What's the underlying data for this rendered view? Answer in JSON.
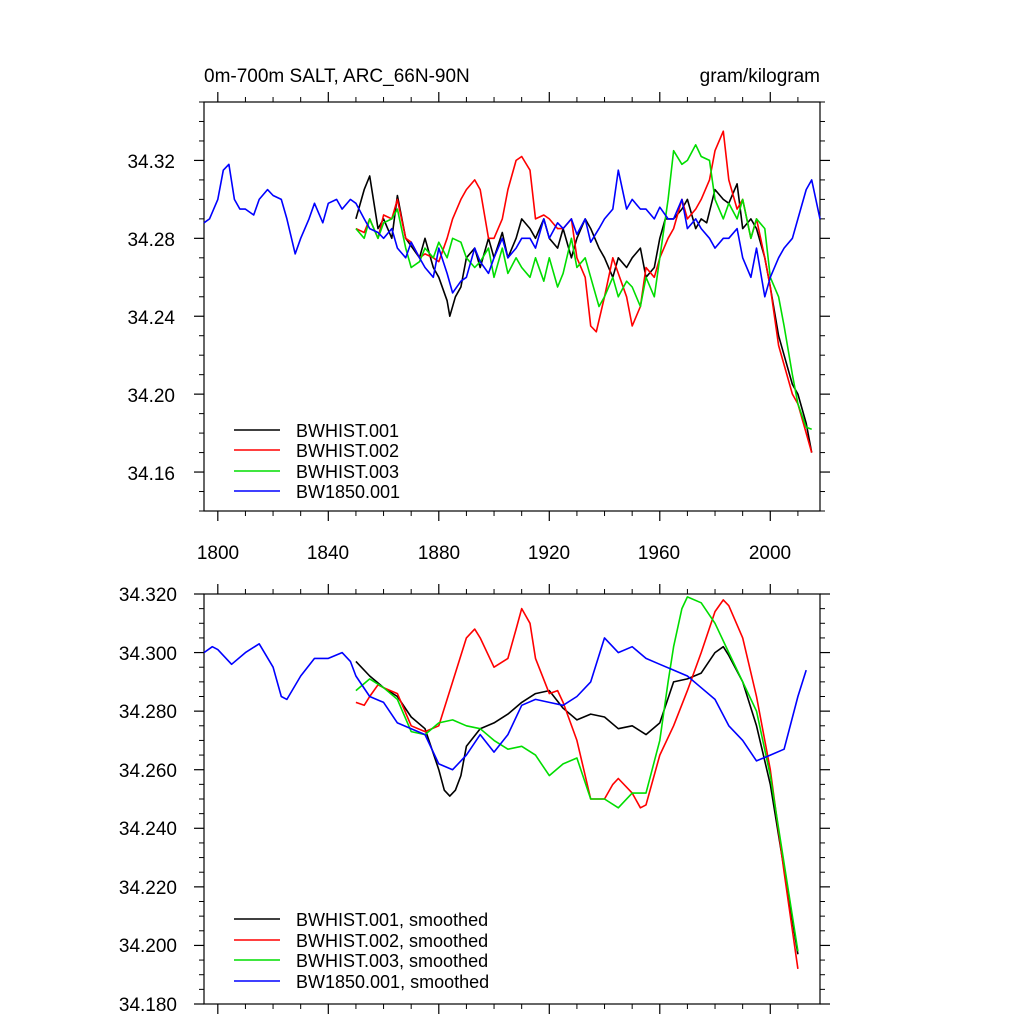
{
  "chart_data": [
    {
      "type": "line",
      "title_left": "0m-700m SALT, ARC_66N-90N",
      "title_right": "gram/kilogram",
      "xlim": [
        1795,
        2018
      ],
      "ylim": [
        34.14,
        34.35
      ],
      "x_ticks": [
        1800,
        1840,
        1880,
        1920,
        1960,
        2000
      ],
      "x_tick_labels": [
        "1800",
        "1840",
        "1880",
        "1920",
        "1960",
        "2000"
      ],
      "y_ticks": [
        34.16,
        34.2,
        34.24,
        34.28,
        34.32
      ],
      "y_tick_labels": [
        "34.16",
        "34.20",
        "34.24",
        "34.28",
        "34.32"
      ],
      "legend": [
        "BWHIST.001",
        "BWHIST.002",
        "BWHIST.003",
        "BW1850.001"
      ],
      "series": [
        {
          "name": "BWHIST.001",
          "color": "#000000",
          "x": [
            1850,
            1853,
            1855,
            1858,
            1860,
            1863,
            1865,
            1868,
            1870,
            1873,
            1875,
            1878,
            1880,
            1883,
            1884,
            1886,
            1888,
            1890,
            1893,
            1895,
            1898,
            1900,
            1903,
            1905,
            1908,
            1910,
            1913,
            1915,
            1918,
            1920,
            1923,
            1925,
            1928,
            1930,
            1933,
            1935,
            1938,
            1940,
            1943,
            1945,
            1948,
            1950,
            1953,
            1955,
            1958,
            1960,
            1962,
            1965,
            1968,
            1970,
            1973,
            1975,
            1977,
            1980,
            1983,
            1985,
            1988,
            1990,
            1993,
            1995,
            1998,
            2000,
            2003,
            2005,
            2008,
            2010,
            2013,
            2015
          ],
          "y": [
            34.29,
            34.305,
            34.312,
            34.285,
            34.29,
            34.28,
            34.302,
            34.28,
            34.276,
            34.27,
            34.28,
            34.265,
            34.26,
            34.248,
            34.24,
            34.25,
            34.255,
            34.27,
            34.275,
            34.265,
            34.28,
            34.27,
            34.283,
            34.27,
            34.28,
            34.29,
            34.285,
            34.28,
            34.29,
            34.28,
            34.275,
            34.285,
            34.27,
            34.28,
            34.29,
            34.285,
            34.275,
            34.27,
            34.26,
            34.27,
            34.265,
            34.27,
            34.275,
            34.26,
            34.265,
            34.28,
            34.29,
            34.29,
            34.295,
            34.3,
            34.285,
            34.29,
            34.288,
            34.305,
            34.3,
            34.298,
            34.308,
            34.285,
            34.29,
            34.285,
            34.27,
            34.255,
            34.23,
            34.22,
            34.205,
            34.2,
            34.185,
            34.17
          ]
        },
        {
          "name": "BWHIST.002",
          "color": "#ff0000",
          "x": [
            1850,
            1853,
            1855,
            1858,
            1860,
            1863,
            1865,
            1868,
            1870,
            1873,
            1875,
            1878,
            1880,
            1883,
            1885,
            1888,
            1890,
            1893,
            1895,
            1898,
            1900,
            1903,
            1905,
            1908,
            1910,
            1913,
            1915,
            1918,
            1920,
            1923,
            1925,
            1928,
            1930,
            1933,
            1935,
            1937,
            1940,
            1943,
            1945,
            1948,
            1950,
            1953,
            1955,
            1958,
            1960,
            1963,
            1965,
            1968,
            1970,
            1973,
            1975,
            1978,
            1980,
            1983,
            1985,
            1988,
            1990,
            1993,
            1995,
            1998,
            2000,
            2003,
            2005,
            2008,
            2010,
            2013,
            2015
          ],
          "y": [
            34.285,
            34.283,
            34.29,
            34.28,
            34.292,
            34.29,
            34.3,
            34.28,
            34.278,
            34.27,
            34.272,
            34.27,
            34.268,
            34.28,
            34.29,
            34.3,
            34.305,
            34.31,
            34.305,
            34.28,
            34.28,
            34.29,
            34.305,
            34.32,
            34.322,
            34.315,
            34.29,
            34.292,
            34.29,
            34.285,
            34.285,
            34.29,
            34.27,
            34.26,
            34.235,
            34.232,
            34.25,
            34.27,
            34.262,
            34.25,
            34.235,
            34.245,
            34.265,
            34.26,
            34.27,
            34.28,
            34.285,
            34.3,
            34.29,
            34.295,
            34.3,
            34.31,
            34.325,
            34.335,
            34.31,
            34.295,
            34.3,
            34.28,
            34.29,
            34.27,
            34.255,
            34.225,
            34.215,
            34.2,
            34.195,
            34.18,
            34.17
          ]
        },
        {
          "name": "BWHIST.003",
          "color": "#00dd00",
          "x": [
            1850,
            1853,
            1855,
            1858,
            1860,
            1863,
            1865,
            1868,
            1870,
            1873,
            1875,
            1878,
            1880,
            1883,
            1885,
            1888,
            1890,
            1893,
            1895,
            1898,
            1900,
            1903,
            1905,
            1908,
            1910,
            1913,
            1915,
            1918,
            1920,
            1923,
            1925,
            1928,
            1930,
            1933,
            1935,
            1938,
            1940,
            1943,
            1945,
            1948,
            1950,
            1953,
            1955,
            1958,
            1960,
            1963,
            1965,
            1968,
            1970,
            1973,
            1975,
            1978,
            1980,
            1983,
            1985,
            1988,
            1990,
            1993,
            1995,
            1998,
            2000,
            2003,
            2005,
            2008,
            2010,
            2013,
            2015
          ],
          "y": [
            34.285,
            34.28,
            34.29,
            34.28,
            34.288,
            34.29,
            34.295,
            34.275,
            34.265,
            34.268,
            34.275,
            34.27,
            34.278,
            34.27,
            34.28,
            34.278,
            34.27,
            34.265,
            34.268,
            34.275,
            34.26,
            34.275,
            34.262,
            34.27,
            34.265,
            34.26,
            34.27,
            34.258,
            34.27,
            34.255,
            34.262,
            34.28,
            34.265,
            34.27,
            34.26,
            34.245,
            34.25,
            34.26,
            34.25,
            34.258,
            34.255,
            34.245,
            34.26,
            34.25,
            34.27,
            34.3,
            34.325,
            34.318,
            34.32,
            34.328,
            34.322,
            34.32,
            34.3,
            34.29,
            34.298,
            34.29,
            34.3,
            34.28,
            34.29,
            34.285,
            34.26,
            34.25,
            34.235,
            34.21,
            34.195,
            34.183,
            34.182
          ]
        },
        {
          "name": "BW1850.001",
          "color": "#0000ff",
          "x": [
            1795,
            1797,
            1800,
            1802,
            1804,
            1806,
            1808,
            1810,
            1813,
            1815,
            1818,
            1820,
            1823,
            1825,
            1828,
            1830,
            1833,
            1835,
            1838,
            1840,
            1843,
            1845,
            1848,
            1850,
            1853,
            1855,
            1858,
            1860,
            1863,
            1865,
            1868,
            1870,
            1873,
            1875,
            1878,
            1880,
            1883,
            1885,
            1888,
            1890,
            1893,
            1895,
            1898,
            1900,
            1903,
            1905,
            1908,
            1910,
            1913,
            1915,
            1918,
            1920,
            1923,
            1925,
            1928,
            1930,
            1933,
            1935,
            1938,
            1940,
            1943,
            1945,
            1948,
            1950,
            1953,
            1955,
            1958,
            1960,
            1963,
            1965,
            1968,
            1970,
            1973,
            1975,
            1978,
            1980,
            1983,
            1985,
            1988,
            1990,
            1993,
            1995,
            1998,
            2000,
            2003,
            2005,
            2008,
            2010,
            2013,
            2015,
            2018
          ],
          "y": [
            34.288,
            34.29,
            34.3,
            34.315,
            34.318,
            34.3,
            34.295,
            34.295,
            34.292,
            34.3,
            34.305,
            34.302,
            34.3,
            34.29,
            34.272,
            34.28,
            34.29,
            34.298,
            34.288,
            34.298,
            34.3,
            34.295,
            34.3,
            34.298,
            34.29,
            34.285,
            34.283,
            34.28,
            34.285,
            34.275,
            34.27,
            34.278,
            34.27,
            34.265,
            34.26,
            34.275,
            34.262,
            34.252,
            34.258,
            34.26,
            34.275,
            34.268,
            34.262,
            34.27,
            34.28,
            34.27,
            34.275,
            34.28,
            34.28,
            34.275,
            34.29,
            34.28,
            34.288,
            34.285,
            34.29,
            34.282,
            34.29,
            34.278,
            34.285,
            34.29,
            34.295,
            34.315,
            34.295,
            34.3,
            34.295,
            34.295,
            34.29,
            34.296,
            34.29,
            34.29,
            34.3,
            34.285,
            34.29,
            34.285,
            34.28,
            34.275,
            34.28,
            34.28,
            34.285,
            34.27,
            34.26,
            34.275,
            34.25,
            34.26,
            34.27,
            34.275,
            34.28,
            34.29,
            34.305,
            34.31,
            34.29
          ]
        }
      ]
    },
    {
      "type": "line",
      "xlim": [
        1795,
        2018
      ],
      "ylim": [
        34.18,
        34.32
      ],
      "x_ticks": [
        1800,
        1840,
        1880,
        1920,
        1960,
        2000
      ],
      "y_ticks": [
        34.18,
        34.2,
        34.22,
        34.24,
        34.26,
        34.28,
        34.3,
        34.32
      ],
      "y_tick_labels": [
        "34.180",
        "34.200",
        "34.220",
        "34.240",
        "34.260",
        "34.280",
        "34.300",
        "34.320"
      ],
      "legend": [
        "BWHIST.001, smoothed",
        "BWHIST.002, smoothed",
        "BWHIST.003, smoothed",
        "BW1850.001, smoothed"
      ],
      "series": [
        {
          "name": "BWHIST.001, smoothed",
          "color": "#000000",
          "x": [
            1850,
            1855,
            1860,
            1865,
            1870,
            1875,
            1880,
            1882,
            1884,
            1886,
            1888,
            1890,
            1895,
            1900,
            1905,
            1910,
            1915,
            1920,
            1925,
            1930,
            1935,
            1940,
            1945,
            1950,
            1955,
            1960,
            1965,
            1970,
            1975,
            1980,
            1983,
            1985,
            1990,
            1995,
            2000,
            2005,
            2010
          ],
          "y": [
            34.297,
            34.292,
            34.288,
            34.285,
            34.278,
            34.274,
            34.26,
            34.253,
            34.251,
            34.253,
            34.258,
            34.268,
            34.274,
            34.276,
            34.279,
            34.283,
            34.286,
            34.287,
            34.281,
            34.277,
            34.279,
            34.278,
            34.274,
            34.275,
            34.272,
            34.276,
            34.29,
            34.291,
            34.293,
            34.3,
            34.302,
            34.299,
            34.29,
            34.275,
            34.255,
            34.226,
            34.197
          ]
        },
        {
          "name": "BWHIST.002, smoothed",
          "color": "#ff0000",
          "x": [
            1850,
            1853,
            1855,
            1858,
            1860,
            1865,
            1870,
            1875,
            1880,
            1885,
            1890,
            1893,
            1895,
            1900,
            1905,
            1908,
            1910,
            1913,
            1915,
            1920,
            1923,
            1925,
            1930,
            1935,
            1940,
            1943,
            1945,
            1950,
            1953,
            1955,
            1960,
            1965,
            1970,
            1975,
            1980,
            1983,
            1985,
            1990,
            1995,
            2000,
            2005,
            2010
          ],
          "y": [
            34.283,
            34.282,
            34.285,
            34.289,
            34.288,
            34.286,
            34.275,
            34.273,
            34.275,
            34.29,
            34.305,
            34.308,
            34.305,
            34.295,
            34.298,
            34.308,
            34.315,
            34.31,
            34.298,
            34.286,
            34.287,
            34.283,
            34.27,
            34.25,
            34.25,
            34.255,
            34.257,
            34.252,
            34.247,
            34.248,
            34.265,
            34.275,
            34.287,
            34.3,
            34.314,
            34.318,
            34.316,
            34.305,
            34.285,
            34.26,
            34.225,
            34.192
          ]
        },
        {
          "name": "BWHIST.003, smoothed",
          "color": "#00dd00",
          "x": [
            1850,
            1855,
            1860,
            1865,
            1870,
            1875,
            1880,
            1885,
            1890,
            1895,
            1900,
            1905,
            1910,
            1915,
            1920,
            1925,
            1930,
            1935,
            1940,
            1945,
            1950,
            1955,
            1960,
            1963,
            1965,
            1968,
            1970,
            1975,
            1980,
            1985,
            1990,
            1995,
            2000,
            2005,
            2010
          ],
          "y": [
            34.287,
            34.291,
            34.288,
            34.284,
            34.273,
            34.272,
            34.276,
            34.277,
            34.275,
            34.274,
            34.27,
            34.267,
            34.268,
            34.265,
            34.258,
            34.262,
            34.264,
            34.25,
            34.25,
            34.247,
            34.252,
            34.252,
            34.27,
            34.29,
            34.302,
            34.315,
            34.319,
            34.317,
            34.31,
            34.3,
            34.29,
            34.28,
            34.258,
            34.228,
            34.198
          ]
        },
        {
          "name": "BW1850.001, smoothed",
          "color": "#0000ff",
          "x": [
            1795,
            1798,
            1800,
            1805,
            1810,
            1815,
            1820,
            1823,
            1825,
            1830,
            1835,
            1840,
            1845,
            1848,
            1850,
            1855,
            1860,
            1865,
            1870,
            1875,
            1880,
            1885,
            1890,
            1895,
            1900,
            1905,
            1910,
            1915,
            1920,
            1925,
            1930,
            1935,
            1940,
            1945,
            1950,
            1955,
            1960,
            1965,
            1970,
            1975,
            1980,
            1985,
            1990,
            1995,
            2000,
            2005,
            2010,
            2013
          ],
          "y": [
            34.3,
            34.302,
            34.301,
            34.296,
            34.3,
            34.303,
            34.295,
            34.285,
            34.284,
            34.292,
            34.298,
            34.298,
            34.3,
            34.297,
            34.292,
            34.285,
            34.283,
            34.276,
            34.274,
            34.272,
            34.262,
            34.26,
            34.265,
            34.272,
            34.266,
            34.272,
            34.282,
            34.284,
            34.283,
            34.282,
            34.285,
            34.29,
            34.305,
            34.3,
            34.302,
            34.298,
            34.296,
            34.294,
            34.292,
            34.288,
            34.284,
            34.275,
            34.27,
            34.263,
            34.265,
            34.267,
            34.285,
            34.294
          ]
        }
      ]
    }
  ]
}
